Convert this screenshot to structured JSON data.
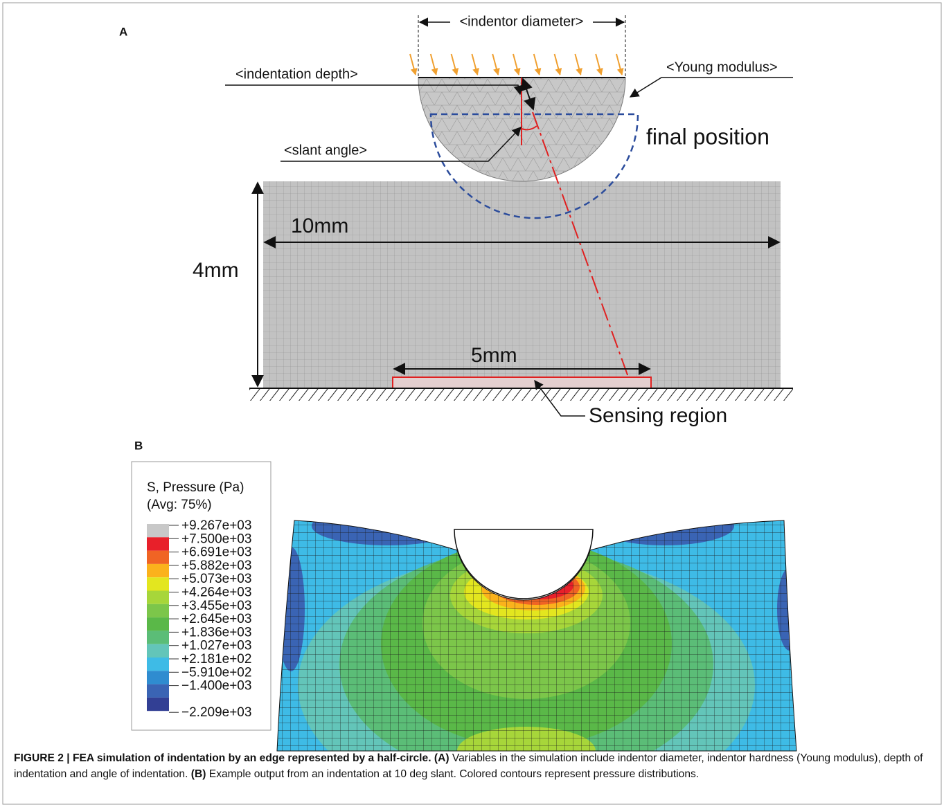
{
  "panel_a": {
    "label": "A",
    "indentor_diameter": "<indentor diameter>",
    "indentation_depth": "<indentation depth>",
    "young_modulus": "<Young modulus>",
    "final_position": "final position",
    "slant_angle": "<slant angle>",
    "width": "10mm",
    "height": "4mm",
    "sensor_width": "5mm",
    "sensing_region": "Sensing region"
  },
  "panel_b": {
    "label": "B",
    "legend": {
      "title": "S, Pressure (Pa)",
      "subtitle": "(Avg: 75%)",
      "ticks": [
        "+9.267e+03",
        "+7.500e+03",
        "+6.691e+03",
        "+5.882e+03",
        "+5.073e+03",
        "+4.264e+03",
        "+3.455e+03",
        "+2.645e+03",
        "+1.836e+03",
        "+1.027e+03",
        "+2.181e+02",
        "−5.910e+02",
        "−1.400e+03",
        "−2.209e+03"
      ],
      "colors": [
        "#c8c8c8",
        "#e8202a",
        "#f06424",
        "#fbb21c",
        "#e3e61f",
        "#a7d63a",
        "#7cc64a",
        "#5ab848",
        "#5bbd77",
        "#63c5b9",
        "#3ebbe6",
        "#2f8cd0",
        "#3a64b4",
        "#323f94"
      ]
    }
  },
  "caption": {
    "title": "FIGURE 2 | FEA simulation of indentation by an edge represented by a half-circle.",
    "parts": [
      {
        "label": "(A)",
        "text": "Variables in the simulation include indentor diameter, indentor hardness (Young modulus), depth of indentation and angle of indentation."
      },
      {
        "label": "(B)",
        "text": "Example output from an indentation at 10 deg slant. Colored contours represent pressure distributions."
      }
    ]
  }
}
